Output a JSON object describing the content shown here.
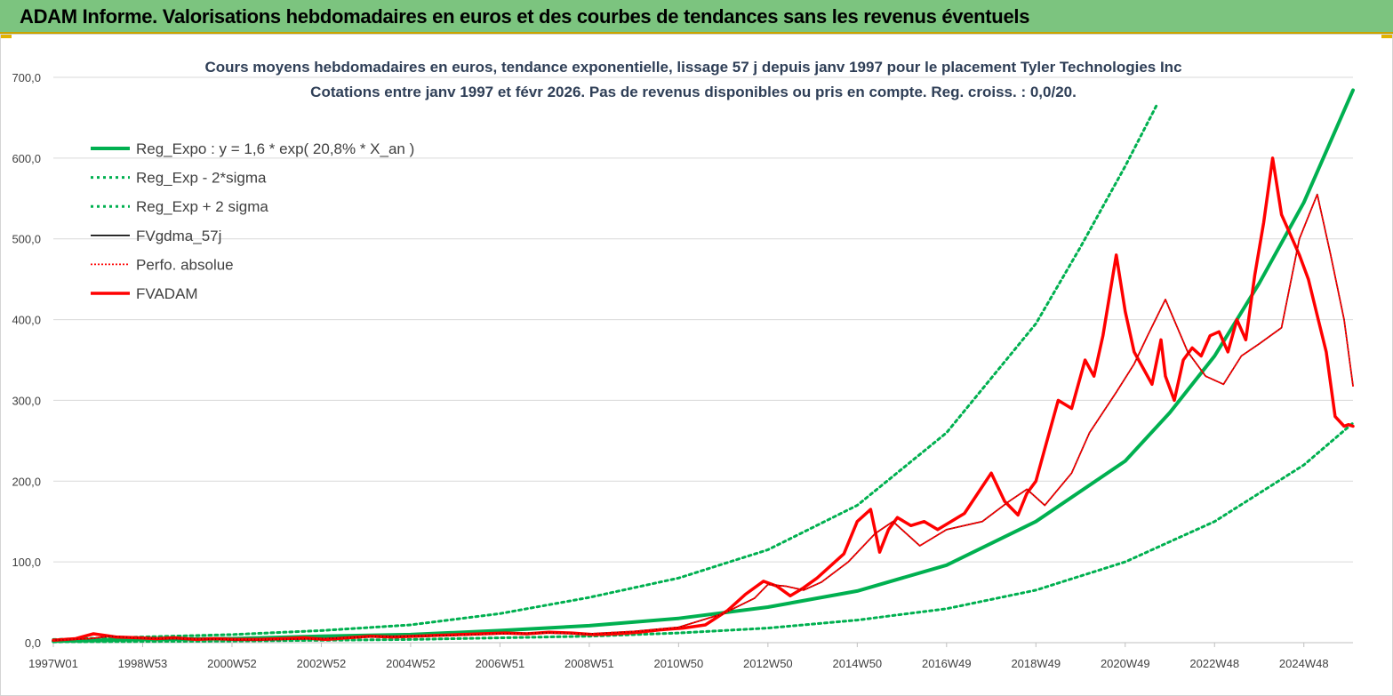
{
  "banner": {
    "title": "ADAM Informe. Valorisations hebdomadaires en euros et des courbes de tendances sans les revenus éventuels"
  },
  "colors": {
    "banner_bg": "#7cc47f",
    "green": "#00b050",
    "black": "#000000",
    "red": "#ff0000",
    "grid": "#d9d9d9"
  },
  "chart_data": {
    "type": "line",
    "title_line1": "Cours moyens hebdomadaires en euros, tendance exponentielle, lissage 57 j depuis janv 1997 pour le placement Tyler Technologies Inc",
    "title_line2": "Cotations entre janv 1997 et févr 2026. Pas de revenus disponibles ou pris en compte. Reg. croiss. : 0,0/20.",
    "xlabel": "",
    "ylabel": "",
    "ylim": [
      0,
      700
    ],
    "xlim": [
      1997.0,
      2026.1
    ],
    "y_ticks": [
      "0,0",
      "100,0",
      "200,0",
      "300,0",
      "400,0",
      "500,0",
      "600,0",
      "700,0"
    ],
    "x_ticks": [
      {
        "label": "1997W01",
        "x": 1997.0
      },
      {
        "label": "1998W53",
        "x": 1999.0
      },
      {
        "label": "2000W52",
        "x": 2001.0
      },
      {
        "label": "2002W52",
        "x": 2003.0
      },
      {
        "label": "2004W52",
        "x": 2005.0
      },
      {
        "label": "2006W51",
        "x": 2007.0
      },
      {
        "label": "2008W51",
        "x": 2009.0
      },
      {
        "label": "2010W50",
        "x": 2011.0
      },
      {
        "label": "2012W50",
        "x": 2013.0
      },
      {
        "label": "2014W50",
        "x": 2015.0
      },
      {
        "label": "2016W49",
        "x": 2017.0
      },
      {
        "label": "2018W49",
        "x": 2019.0
      },
      {
        "label": "2020W49",
        "x": 2021.0
      },
      {
        "label": "2022W48",
        "x": 2023.0
      },
      {
        "label": "2024W48",
        "x": 2025.0
      }
    ],
    "grid": true,
    "legend_position": "top-left",
    "series": [
      {
        "name": "Reg_Expo : y = 1,6 * exp( 20,8% *  X_an )",
        "style": "solid-thick",
        "color": "#00b050",
        "x": [
          1997,
          1999,
          2001,
          2003,
          2005,
          2007,
          2009,
          2011,
          2013,
          2015,
          2017,
          2019,
          2021,
          2022,
          2023,
          2024,
          2025,
          2026.1
        ],
        "y": [
          2,
          4,
          5,
          8,
          10,
          15,
          21,
          30,
          44,
          64,
          96,
          150,
          225,
          285,
          355,
          445,
          545,
          684
        ]
      },
      {
        "name": "Reg_Exp - 2*sigma",
        "style": "dotted",
        "color": "#00b050",
        "x": [
          1997,
          2001,
          2005,
          2009,
          2011,
          2013,
          2015,
          2017,
          2019,
          2021,
          2023,
          2025,
          2026.1
        ],
        "y": [
          1,
          2,
          4,
          8,
          12,
          18,
          28,
          42,
          65,
          100,
          150,
          220,
          272
        ]
      },
      {
        "name": "Reg_Exp + 2 sigma",
        "style": "dotted",
        "color": "#00b050",
        "x": [
          1997,
          1999,
          2001,
          2003,
          2005,
          2007,
          2009,
          2011,
          2013,
          2015,
          2017,
          2019,
          2020,
          2021,
          2021.7
        ],
        "y": [
          4,
          7,
          10,
          15,
          22,
          36,
          56,
          80,
          115,
          170,
          260,
          395,
          490,
          590,
          665
        ]
      },
      {
        "name": "FVgdma_57j",
        "style": "solid",
        "color": "#000000",
        "x": [
          1997,
          1997.8,
          1998.3,
          1998.8,
          1999.5,
          2000,
          2001,
          2002,
          2003,
          2004,
          2005,
          2006,
          2007,
          2008,
          2009,
          2010,
          2011,
          2012,
          2012.7,
          2013,
          2013.4,
          2013.8,
          2014.2,
          2014.8,
          2015.4,
          2015.8,
          2016.4,
          2017,
          2017.8,
          2018.4,
          2018.8,
          2019.2,
          2019.8,
          2020.2,
          2020.8,
          2021.2,
          2021.5,
          2021.9,
          2022.4,
          2022.8,
          2023.2,
          2023.6,
          2024,
          2024.5,
          2024.9,
          2025.3,
          2025.6,
          2025.9,
          2026.1
        ],
        "y": [
          3,
          5,
          8,
          6,
          5,
          5,
          4,
          4,
          5,
          7,
          8,
          9,
          11,
          12,
          11,
          14,
          19,
          36,
          55,
          72,
          70,
          65,
          75,
          100,
          135,
          150,
          120,
          140,
          150,
          175,
          190,
          170,
          210,
          260,
          310,
          345,
          380,
          425,
          360,
          330,
          320,
          355,
          370,
          390,
          500,
          555,
          480,
          400,
          318
        ]
      },
      {
        "name": "Perfo. absolue",
        "style": "dotted",
        "color": "#ff0000",
        "x": [
          1997,
          1997.8,
          1998.3,
          1998.8,
          1999.5,
          2000,
          2001,
          2002,
          2003,
          2004,
          2005,
          2006,
          2007,
          2008,
          2009,
          2010,
          2011,
          2012,
          2012.7,
          2013,
          2013.4,
          2013.8,
          2014.2,
          2014.8,
          2015.4,
          2015.8,
          2016.4,
          2017,
          2017.8,
          2018.4,
          2018.8,
          2019.2,
          2019.8,
          2020.2,
          2020.8,
          2021.2,
          2021.5,
          2021.9,
          2022.4,
          2022.8,
          2023.2,
          2023.6,
          2024,
          2024.5,
          2024.9,
          2025.3,
          2025.6,
          2025.9,
          2026.1
        ],
        "y": [
          3,
          5,
          8,
          6,
          5,
          5,
          4,
          4,
          5,
          7,
          8,
          9,
          11,
          12,
          11,
          14,
          19,
          36,
          55,
          72,
          70,
          65,
          75,
          100,
          135,
          150,
          120,
          140,
          150,
          175,
          190,
          170,
          210,
          260,
          310,
          345,
          380,
          425,
          360,
          330,
          320,
          355,
          370,
          390,
          500,
          555,
          480,
          400,
          318
        ]
      },
      {
        "name": "FVADAM",
        "style": "solid-thick",
        "color": "#ff0000",
        "x": [
          1997,
          1997.5,
          1997.9,
          1998.4,
          1998.9,
          1999.3,
          1999.7,
          2000.2,
          2000.6,
          2001.1,
          2001.6,
          2002.1,
          2002.6,
          2003.1,
          2003.6,
          2004.1,
          2004.6,
          2005.1,
          2005.6,
          2006.1,
          2006.6,
          2007.1,
          2007.6,
          2008.1,
          2008.6,
          2009.1,
          2009.6,
          2010.1,
          2010.6,
          2011.1,
          2011.6,
          2012.1,
          2012.5,
          2012.9,
          2013.2,
          2013.5,
          2013.8,
          2014.1,
          2014.4,
          2014.7,
          2015,
          2015.3,
          2015.5,
          2015.7,
          2015.9,
          2016.2,
          2016.5,
          2016.8,
          2017.1,
          2017.4,
          2017.7,
          2018.0,
          2018.3,
          2018.6,
          2018.8,
          2019.0,
          2019.2,
          2019.5,
          2019.8,
          2020.1,
          2020.3,
          2020.5,
          2020.8,
          2021.0,
          2021.2,
          2021.4,
          2021.6,
          2021.8,
          2021.9,
          2022.1,
          2022.3,
          2022.5,
          2022.7,
          2022.9,
          2023.1,
          2023.3,
          2023.5,
          2023.7,
          2023.9,
          2024.1,
          2024.3,
          2024.5,
          2024.7,
          2024.9,
          2025.1,
          2025.3,
          2025.5,
          2025.7,
          2025.9,
          2026.0,
          2026.1
        ],
        "y": [
          3,
          5,
          11,
          7,
          6,
          5,
          6,
          4,
          5,
          4,
          4,
          5,
          6,
          4,
          6,
          8,
          7,
          8,
          9,
          10,
          11,
          12,
          11,
          13,
          12,
          10,
          11,
          13,
          16,
          18,
          22,
          40,
          60,
          76,
          70,
          58,
          68,
          80,
          95,
          110,
          150,
          165,
          112,
          140,
          155,
          145,
          150,
          140,
          150,
          160,
          185,
          210,
          175,
          158,
          185,
          200,
          240,
          300,
          290,
          350,
          330,
          380,
          480,
          410,
          360,
          340,
          320,
          375,
          330,
          300,
          350,
          365,
          355,
          380,
          385,
          360,
          400,
          375,
          455,
          520,
          600,
          530,
          505,
          480,
          450,
          405,
          360,
          280,
          268,
          270,
          268
        ]
      }
    ]
  }
}
